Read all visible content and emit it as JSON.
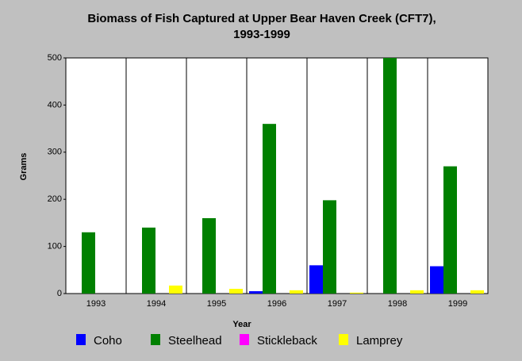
{
  "chart_data": {
    "type": "bar",
    "title": [
      "Biomass of Fish Captured at Upper Bear Haven Creek (CFT7),",
      "1993-1999"
    ],
    "x_label": "Year",
    "y_label": "Grams",
    "categories": [
      "1993",
      "1994",
      "1995",
      "1996",
      "1997",
      "1998",
      "1999"
    ],
    "series": [
      {
        "name": "Coho",
        "color": "#0000ff",
        "values": [
          0,
          0,
          0,
          5,
          60,
          0,
          58
        ]
      },
      {
        "name": "Steelhead",
        "color": "#008000",
        "values": [
          130,
          140,
          160,
          360,
          198,
          500,
          270
        ]
      },
      {
        "name": "Stickleback",
        "color": "#ff00ff",
        "values": [
          0,
          0,
          0,
          0,
          0,
          0,
          0
        ]
      },
      {
        "name": "Lamprey",
        "color": "#ffff00",
        "values": [
          0,
          17,
          10,
          7,
          2,
          7,
          7
        ]
      }
    ],
    "ylim": [
      0,
      500
    ],
    "yticks": [
      0,
      100,
      200,
      300,
      400,
      500
    ],
    "grid": "x"
  }
}
